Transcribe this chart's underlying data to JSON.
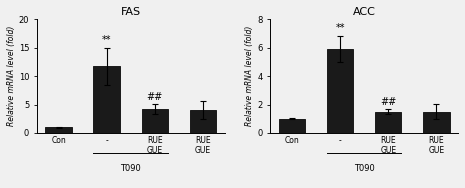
{
  "fas": {
    "title": "FAS",
    "categories": [
      "Con",
      "-",
      "RUE\nGUE",
      "RUE\nGUE"
    ],
    "values": [
      1.0,
      11.7,
      4.2,
      4.1
    ],
    "errors": [
      0.1,
      3.2,
      0.9,
      1.6
    ],
    "ylim": [
      0,
      20
    ],
    "yticks": [
      0,
      5,
      10,
      15,
      20
    ],
    "bar_color": "#1a1a1a",
    "annotations": [
      {
        "bar": 1,
        "text": "**",
        "y": 15.5
      },
      {
        "bar": 2,
        "text": "##",
        "y": 5.5
      }
    ]
  },
  "acc": {
    "title": "ACC",
    "categories": [
      "Con",
      "-",
      "RUE\nGUE",
      "RUE\nGUE"
    ],
    "values": [
      1.0,
      5.9,
      1.5,
      1.5
    ],
    "errors": [
      0.05,
      0.9,
      0.15,
      0.55
    ],
    "ylim": [
      0,
      8
    ],
    "yticks": [
      0,
      2,
      4,
      6,
      8
    ],
    "bar_color": "#1a1a1a",
    "annotations": [
      {
        "bar": 1,
        "text": "**",
        "y": 7.0
      },
      {
        "bar": 2,
        "text": "##",
        "y": 1.85
      }
    ]
  },
  "ylabel": "Relative mRNA level (fold)",
  "t090_label": "T090",
  "background_color": "#f0f0f0"
}
